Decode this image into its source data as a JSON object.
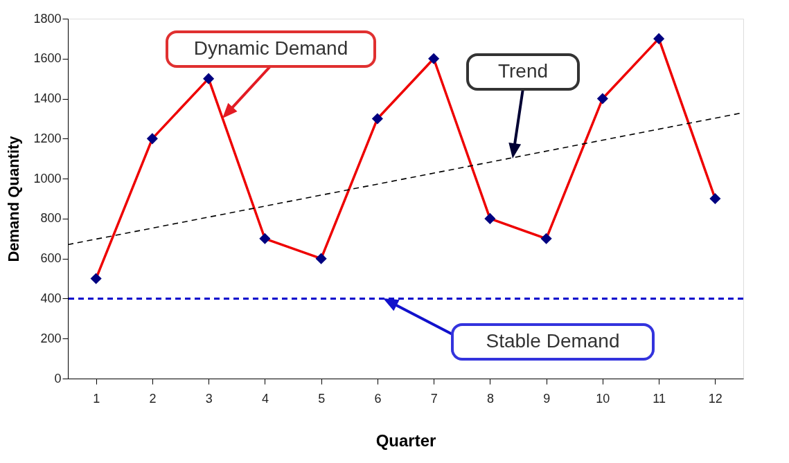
{
  "chart_data": {
    "type": "line",
    "xlabel": "Quarter",
    "ylabel": "Demand Quantity",
    "x": [
      1,
      2,
      3,
      4,
      5,
      6,
      7,
      8,
      9,
      10,
      11,
      12
    ],
    "xlim": [
      0.5,
      12.5
    ],
    "xticks": [
      1,
      2,
      3,
      4,
      5,
      6,
      7,
      8,
      9,
      10,
      11,
      12
    ],
    "ylim": [
      0,
      1800
    ],
    "yticks": [
      0,
      200,
      400,
      600,
      800,
      1000,
      1200,
      1400,
      1600,
      1800
    ],
    "grid": false,
    "series": [
      {
        "type": "line",
        "color": "#ee0000",
        "marker": "diamond",
        "line_style": "solid",
        "values": [
          500,
          1200,
          1500,
          700,
          600,
          1300,
          1600,
          800,
          700,
          1400,
          1700,
          900
        ]
      },
      {
        "type": "line",
        "color": "#000000",
        "marker": "none",
        "line_style": "dashed",
        "x": [
          0.5,
          12.5
        ],
        "values": [
          670,
          1330
        ]
      }
    ],
    "ref_lines": [
      {
        "axis": "y",
        "value": 400,
        "color": "#0000cc",
        "line_style": "dashed"
      }
    ],
    "annotations": [
      "Dynamic Demand",
      "Trend",
      "Stable Demand"
    ]
  }
}
